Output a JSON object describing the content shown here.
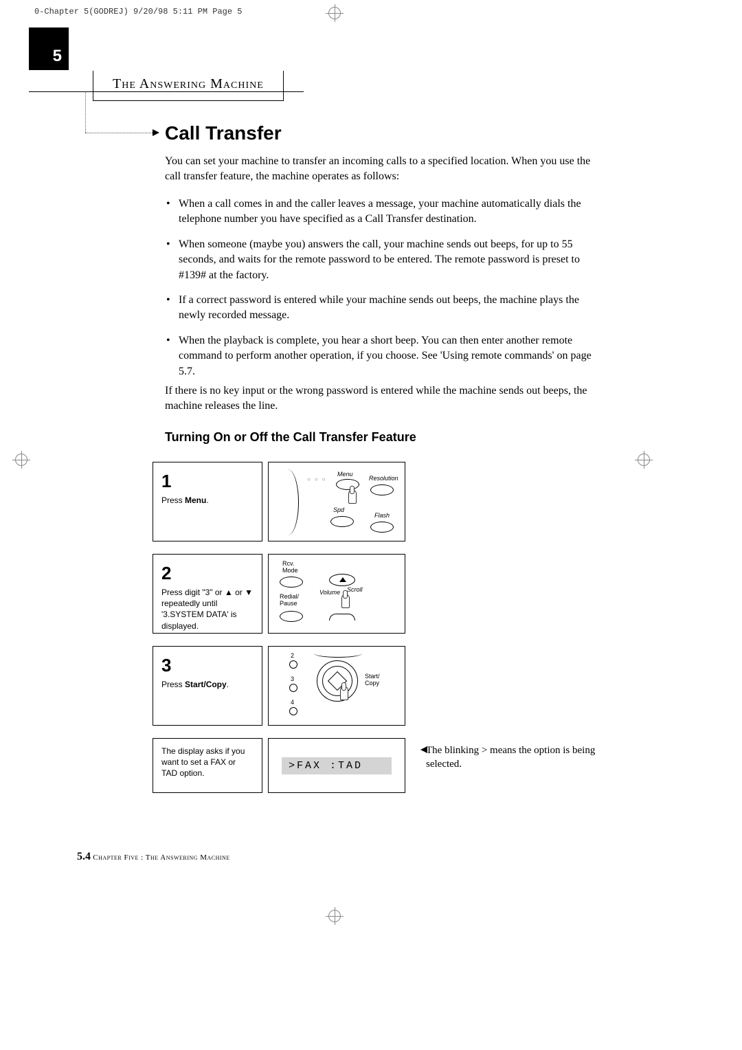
{
  "print_header": "0-Chapter 5(GODREJ)  9/20/98 5:11 PM  Page 5",
  "chapter_number": "5",
  "chapter_title": "The  Answering  Machine",
  "section_title": "Call Transfer",
  "intro_text": "You can set your machine to transfer an incoming calls to a specified location. When you use the call transfer feature, the machine operates as follows:",
  "bullets": [
    "When a call comes in and the caller leaves a message, your machine automatically dials the telephone number you have specified as a Call Transfer destination.",
    "When someone (maybe you) answers the call, your machine sends out beeps, for up to 55 seconds, and waits for the remote password to be entered. The remote password is preset to #139# at the factory.",
    "If a correct password is entered while your machine sends out beeps, the machine plays the newly recorded message.",
    "When the playback is complete, you hear a short beep. You can then enter another remote command to perform another operation, if you choose. See 'Using remote commands' on page 5.7."
  ],
  "closing_text": "If there is no key input or the wrong password is entered while the machine sends out beeps, the machine releases the line.",
  "subheading": "Turning On or Off the Call Transfer Feature",
  "steps": {
    "s1_num": "1",
    "s1_text": "Press <b>Menu</b>.",
    "s1_labels": {
      "menu": "Menu",
      "resolution": "Resolution",
      "spd": "Spd",
      "flash": "Flash"
    },
    "s2_num": "2",
    "s2_text": "Press digit \"3\" or ▲ or ▼ repeatedly until '3.SYSTEM DATA' is displayed.",
    "s2_labels": {
      "rcv": "Rcv.\nMode",
      "redial": "Redial/\nPause",
      "volume": "Volume",
      "scroll": "Scroll"
    },
    "s3_num": "3",
    "s3_text": "Press <b>Start/Copy</b>.",
    "s3_labels": {
      "start": "Start/\nCopy",
      "n2": "2",
      "n3": "3",
      "n4": "4"
    },
    "s4_text": "The display asks if you want to set a FAX or TAD option.",
    "s4_lcd": ">FAX  :TAD"
  },
  "side_note": "The blinking > means the option is being selected.",
  "footer_page": "5.4",
  "footer_text": "Chapter Five : The Answering Machine"
}
